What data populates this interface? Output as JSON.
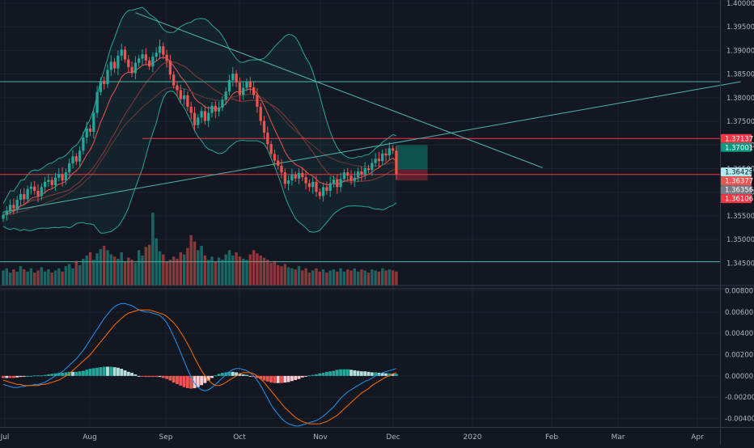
{
  "chart_data": [
    {
      "type": "candlestick",
      "name": "",
      "x_axis_labels": [
        "Jul",
        "Aug",
        "Sep",
        "Oct",
        "Nov",
        "Dec",
        "2020",
        "Feb",
        "Mar",
        "Apr"
      ],
      "y_ticks": [
        "1.40000",
        "1.39500",
        "1.39000",
        "1.38500",
        "1.38000",
        "1.37500",
        "1.37000",
        "1.36500",
        "1.36000",
        "1.35500",
        "1.35000",
        "1.34500"
      ],
      "ylim": [
        1.3425,
        1.4
      ],
      "price_tags": [
        {
          "label": "1.37137",
          "value": 1.37137,
          "color": "#f23645"
        },
        {
          "label": "1.37001",
          "value": 1.37001,
          "color": "#089981"
        },
        {
          "label": "1.36429",
          "value": 1.36429,
          "color": "#b2ebf2"
        },
        {
          "label": "1.36377",
          "value": 1.36377,
          "color": "#ef5350"
        },
        {
          "label": "1.36356",
          "value": 1.36356,
          "color": "#787b86"
        },
        {
          "label": "1.36106",
          "value": 1.36106,
          "color": "#f23645"
        }
      ],
      "horizontal_levels": [
        {
          "value": 1.3834,
          "color": "#4db6ac"
        },
        {
          "value": 1.37137,
          "color": "#f23645"
        },
        {
          "value": 1.36377,
          "color": "#f23645"
        },
        {
          "value": 1.3453,
          "color": "#4db6ac"
        }
      ],
      "trendlines": [
        {
          "from": [
            0,
            1.3558
          ],
          "to": [
            212,
            1.3834
          ],
          "color": "#4db6ac"
        },
        {
          "from": [
            38,
            1.398
          ],
          "to": [
            155,
            1.3652
          ],
          "color": "#4db6ac"
        }
      ],
      "position_box": {
        "entry": 1.3648,
        "target": 1.37001,
        "stop": 1.3625,
        "start_bar": 113,
        "end_bar": 122
      },
      "closes": [
        1.3552,
        1.3561,
        1.3573,
        1.3566,
        1.3584,
        1.3596,
        1.3585,
        1.3607,
        1.3612,
        1.3603,
        1.3592,
        1.3611,
        1.3622,
        1.3626,
        1.3615,
        1.3631,
        1.3639,
        1.3625,
        1.3642,
        1.3661,
        1.3676,
        1.3665,
        1.3688,
        1.3716,
        1.3735,
        1.3728,
        1.3768,
        1.3812,
        1.3836,
        1.3829,
        1.3859,
        1.3876,
        1.3862,
        1.3889,
        1.3902,
        1.3881,
        1.3865,
        1.3852,
        1.3874,
        1.3883,
        1.3892,
        1.3879,
        1.3866,
        1.3887,
        1.3895,
        1.3909,
        1.3891,
        1.3878,
        1.3849,
        1.3826,
        1.3816,
        1.3797,
        1.3805,
        1.3781,
        1.3768,
        1.3742,
        1.3758,
        1.3772,
        1.3751,
        1.3768,
        1.3783,
        1.3771,
        1.3779,
        1.3796,
        1.3813,
        1.3837,
        1.3851,
        1.3832,
        1.3806,
        1.3821,
        1.3834,
        1.3822,
        1.3806,
        1.3781,
        1.3751,
        1.3726,
        1.3702,
        1.3681,
        1.3667,
        1.3656,
        1.3642,
        1.3618,
        1.3625,
        1.3637,
        1.3629,
        1.3641,
        1.3632,
        1.3619,
        1.3611,
        1.3622,
        1.3601,
        1.3592,
        1.3611,
        1.3603,
        1.3619,
        1.3627,
        1.3611,
        1.3628,
        1.3642,
        1.3635,
        1.3624,
        1.3631,
        1.3644,
        1.3637,
        1.3651,
        1.3647,
        1.3662,
        1.3671,
        1.3666,
        1.3682,
        1.3678,
        1.3693,
        1.3688,
        1.3638
      ],
      "volumes": [
        14,
        16,
        12,
        15,
        13,
        18,
        15,
        13,
        16,
        12,
        14,
        17,
        13,
        15,
        12,
        14,
        16,
        13,
        18,
        20,
        16,
        23,
        19,
        25,
        28,
        31,
        24,
        30,
        34,
        37,
        33,
        29,
        27,
        25,
        31,
        22,
        26,
        24,
        21,
        33,
        28,
        36,
        38,
        68,
        44,
        32,
        29,
        22,
        24,
        27,
        25,
        31,
        29,
        35,
        47,
        41,
        33,
        37,
        28,
        24,
        27,
        22,
        26,
        24,
        29,
        33,
        28,
        31,
        27,
        25,
        24,
        29,
        33,
        30,
        28,
        26,
        24,
        21,
        23,
        19,
        18,
        20,
        17,
        16,
        15,
        18,
        14,
        16,
        12,
        14,
        16,
        13,
        15,
        12,
        14,
        15,
        13,
        16,
        13,
        15,
        14,
        16,
        13,
        15,
        14,
        12,
        15,
        14,
        13,
        16,
        14,
        15,
        14,
        13
      ]
    },
    {
      "type": "macd",
      "name": "",
      "y_ticks": [
        "0.00800",
        "0.00600",
        "0.00400",
        "0.00200",
        "0.00000",
        "-0.00200",
        "-0.00400"
      ],
      "ylim": [
        -0.0048,
        0.0082
      ],
      "macd": [
        -0.0008,
        -0.0009,
        -0.001,
        -0.0011,
        -0.0011,
        -0.001,
        -0.001,
        -0.0009,
        -0.0009,
        -0.0008,
        -0.0008,
        -0.0007,
        -0.0006,
        -0.0004,
        -0.0002,
        0.0,
        0.0002,
        0.0004,
        0.0007,
        0.001,
        0.0013,
        0.0016,
        0.002,
        0.0024,
        0.0029,
        0.0034,
        0.0039,
        0.0044,
        0.0049,
        0.0054,
        0.0058,
        0.0062,
        0.0065,
        0.0067,
        0.0068,
        0.0068,
        0.0067,
        0.0066,
        0.0064,
        0.0062,
        0.0061,
        0.006,
        0.006,
        0.0059,
        0.0058,
        0.0057,
        0.0054,
        0.005,
        0.0044,
        0.0037,
        0.003,
        0.0022,
        0.0014,
        0.0006,
        -0.0001,
        -0.0007,
        -0.0011,
        -0.0013,
        -0.0014,
        -0.0013,
        -0.0011,
        -0.0008,
        -0.0005,
        -0.0002,
        0.0001,
        0.0004,
        0.0006,
        0.0007,
        0.0007,
        0.0006,
        0.0005,
        0.0003,
        0.0,
        -0.0004,
        -0.0009,
        -0.0015,
        -0.0021,
        -0.0027,
        -0.0032,
        -0.0036,
        -0.004,
        -0.0043,
        -0.0045,
        -0.0046,
        -0.0047,
        -0.0047,
        -0.0046,
        -0.0045,
        -0.0044,
        -0.0043,
        -0.0042,
        -0.004,
        -0.0038,
        -0.0035,
        -0.0032,
        -0.0029,
        -0.0025,
        -0.0021,
        -0.0018,
        -0.0015,
        -0.0013,
        -0.0011,
        -0.0009,
        -0.0007,
        -0.0005,
        -0.0004,
        -0.0002,
        0.0,
        0.0001,
        0.0003,
        0.0004,
        0.0005,
        0.0006,
        0.0007
      ],
      "signal": [
        -0.0004,
        -0.0005,
        -0.0006,
        -0.0007,
        -0.0008,
        -0.0008,
        -0.0009,
        -0.0009,
        -0.0009,
        -0.0009,
        -0.0009,
        -0.0008,
        -0.0008,
        -0.0007,
        -0.0006,
        -0.0005,
        -0.0004,
        -0.0002,
        0.0,
        0.0002,
        0.0005,
        0.0008,
        0.0011,
        0.0014,
        0.0017,
        0.002,
        0.0024,
        0.0028,
        0.0032,
        0.0036,
        0.004,
        0.0044,
        0.0048,
        0.0051,
        0.0054,
        0.0057,
        0.0059,
        0.006,
        0.0061,
        0.0062,
        0.0062,
        0.0062,
        0.0062,
        0.0061,
        0.006,
        0.0059,
        0.0058,
        0.0056,
        0.0053,
        0.005,
        0.0046,
        0.0041,
        0.0036,
        0.003,
        0.0024,
        0.0017,
        0.0011,
        0.0005,
        0.0,
        -0.0004,
        -0.0007,
        -0.0009,
        -0.0009,
        -0.0008,
        -0.0006,
        -0.0004,
        -0.0002,
        0.0,
        0.0002,
        0.0003,
        0.0003,
        0.0003,
        0.0002,
        0.0,
        -0.0003,
        -0.0006,
        -0.001,
        -0.0014,
        -0.0018,
        -0.0022,
        -0.0026,
        -0.003,
        -0.0033,
        -0.0036,
        -0.0039,
        -0.0041,
        -0.0043,
        -0.0044,
        -0.0045,
        -0.0045,
        -0.0045,
        -0.0045,
        -0.0044,
        -0.0043,
        -0.0041,
        -0.0039,
        -0.0037,
        -0.0034,
        -0.0031,
        -0.0028,
        -0.0025,
        -0.0022,
        -0.0019,
        -0.0016,
        -0.0014,
        -0.0012,
        -0.0009,
        -0.0007,
        -0.0005,
        -0.0003,
        -0.0001,
        0.0,
        0.0002,
        0.0003
      ]
    }
  ]
}
